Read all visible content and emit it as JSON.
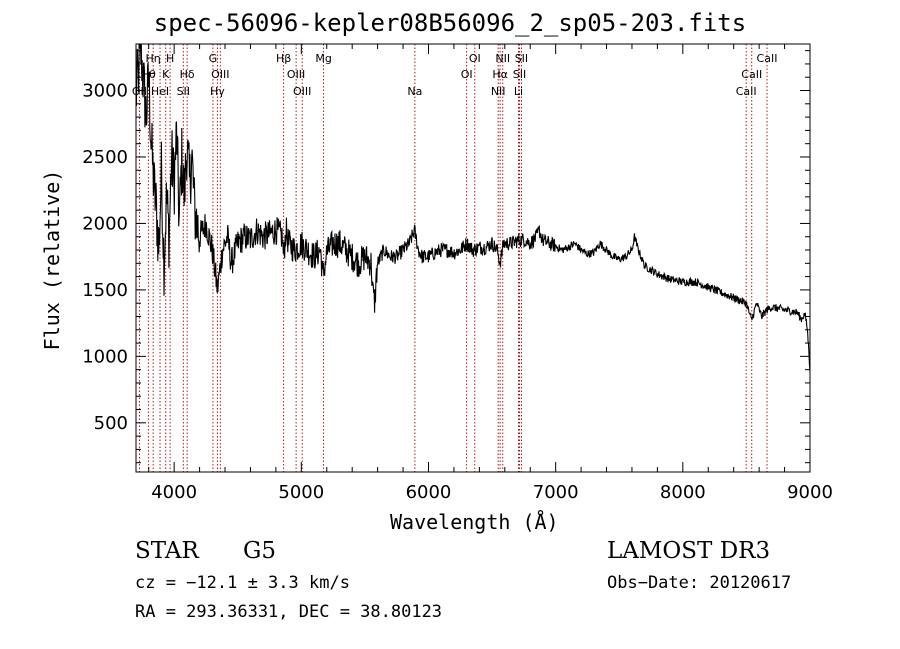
{
  "chart_data": {
    "type": "line",
    "title": "spec-56096-kepler08B56096_2_sp05-203.fits",
    "xlabel": "Wavelength (Å)",
    "ylabel": "Flux (relative)",
    "xlim": [
      3700,
      9000
    ],
    "ylim": [
      130,
      3350
    ],
    "xticks": [
      4000,
      5000,
      6000,
      7000,
      8000,
      9000
    ],
    "yticks": [
      500,
      1000,
      1500,
      2000,
      2500,
      3000
    ],
    "series": [
      {
        "name": "flux",
        "x": [
          3700,
          3720,
          3740,
          3760,
          3780,
          3800,
          3820,
          3840,
          3860,
          3880,
          3900,
          3920,
          3940,
          3960,
          3980,
          4000,
          4020,
          4040,
          4060,
          4080,
          4100,
          4120,
          4140,
          4160,
          4200,
          4250,
          4300,
          4340,
          4380,
          4420,
          4450,
          4500,
          4550,
          4600,
          4650,
          4700,
          4750,
          4800,
          4850,
          4860,
          4880,
          4900,
          4950,
          5000,
          5050,
          5100,
          5150,
          5170,
          5200,
          5250,
          5300,
          5350,
          5400,
          5450,
          5500,
          5550,
          5560,
          5577,
          5590,
          5600,
          5650,
          5700,
          5750,
          5800,
          5850,
          5890,
          5920,
          5950,
          6000,
          6050,
          6100,
          6150,
          6200,
          6250,
          6300,
          6350,
          6400,
          6450,
          6500,
          6540,
          6563,
          6590,
          6650,
          6700,
          6750,
          6800,
          6850,
          6870,
          6900,
          6950,
          7000,
          7050,
          7100,
          7150,
          7200,
          7250,
          7300,
          7350,
          7400,
          7450,
          7500,
          7550,
          7600,
          7620,
          7650,
          7700,
          7750,
          7800,
          7900,
          8000,
          8100,
          8200,
          8300,
          8400,
          8500,
          8540,
          8580,
          8620,
          8660,
          8700,
          8750,
          8800,
          8850,
          8900,
          8930,
          8960,
          8980,
          9000
        ],
        "y": [
          2950,
          3150,
          3300,
          3050,
          2800,
          3100,
          2600,
          2300,
          2100,
          1800,
          2400,
          1700,
          2200,
          1900,
          2500,
          2300,
          2700,
          2000,
          2500,
          2200,
          2600,
          2300,
          2500,
          2100,
          1900,
          2000,
          1800,
          1500,
          1800,
          1900,
          1700,
          1850,
          1900,
          1880,
          1950,
          1900,
          1920,
          1950,
          1900,
          1750,
          1950,
          1850,
          1800,
          1850,
          1800,
          1750,
          1800,
          1600,
          1780,
          1850,
          1850,
          1800,
          1750,
          1700,
          1750,
          1700,
          1500,
          1400,
          1600,
          1700,
          1800,
          1750,
          1750,
          1800,
          1850,
          1950,
          1800,
          1750,
          1750,
          1780,
          1800,
          1800,
          1780,
          1800,
          1850,
          1800,
          1820,
          1820,
          1850,
          1800,
          1700,
          1850,
          1850,
          1870,
          1880,
          1850,
          1900,
          1950,
          1870,
          1850,
          1830,
          1800,
          1820,
          1850,
          1800,
          1770,
          1780,
          1850,
          1800,
          1750,
          1730,
          1750,
          1800,
          1900,
          1800,
          1680,
          1650,
          1620,
          1580,
          1560,
          1560,
          1520,
          1480,
          1440,
          1400,
          1270,
          1400,
          1300,
          1350,
          1370,
          1360,
          1350,
          1340,
          1330,
          1280,
          1320,
          1200,
          900
        ]
      }
    ],
    "lines": [
      {
        "label": "Hη",
        "x": 3835,
        "row": 0
      },
      {
        "label": "H",
        "x": 3968,
        "row": 0
      },
      {
        "label": "G",
        "x": 4305,
        "row": 0
      },
      {
        "label": "Hβ",
        "x": 4861,
        "row": 0
      },
      {
        "label": "Mg",
        "x": 5175,
        "row": 0
      },
      {
        "label": "OI",
        "x": 6364,
        "row": 0
      },
      {
        "label": "NII",
        "x": 6584,
        "row": 0
      },
      {
        "label": "SII",
        "x": 6731,
        "row": 0
      },
      {
        "label": "CaII",
        "x": 8662,
        "row": 0
      },
      {
        "label": "Hθ",
        "x": 3797,
        "row": 1
      },
      {
        "label": "K",
        "x": 3934,
        "row": 1
      },
      {
        "label": "Hδ",
        "x": 4102,
        "row": 1
      },
      {
        "label": "OIII",
        "x": 4363,
        "row": 1
      },
      {
        "label": "OIII",
        "x": 4959,
        "row": 1
      },
      {
        "label": "OI",
        "x": 6300,
        "row": 1
      },
      {
        "label": "Hα",
        "x": 6563,
        "row": 1
      },
      {
        "label": "SII",
        "x": 6716,
        "row": 1
      },
      {
        "label": "CaII",
        "x": 8542,
        "row": 1
      },
      {
        "label": "OII",
        "x": 3727,
        "row": 2
      },
      {
        "label": "HeI",
        "x": 3889,
        "row": 2
      },
      {
        "label": "SII",
        "x": 4072,
        "row": 2
      },
      {
        "label": "Hγ",
        "x": 4340,
        "row": 2
      },
      {
        "label": "OIII",
        "x": 5007,
        "row": 2
      },
      {
        "label": "Na",
        "x": 5893,
        "row": 2
      },
      {
        "label": "NII",
        "x": 6548,
        "row": 2
      },
      {
        "label": "Li",
        "x": 6708,
        "row": 2
      },
      {
        "label": "CaII",
        "x": 8498,
        "row": 2
      }
    ],
    "line_color": "#b00000",
    "spectrum_color": "#000000",
    "background": "#ffffff"
  },
  "info": {
    "class": "STAR",
    "subclass": "G5",
    "survey": "LAMOST DR3",
    "cz": "cz = −12.1 ± 3.3 km/s",
    "obs_date": "Obs−Date: 20120617",
    "radec": "RA = 293.36331, DEC =  38.80123"
  }
}
